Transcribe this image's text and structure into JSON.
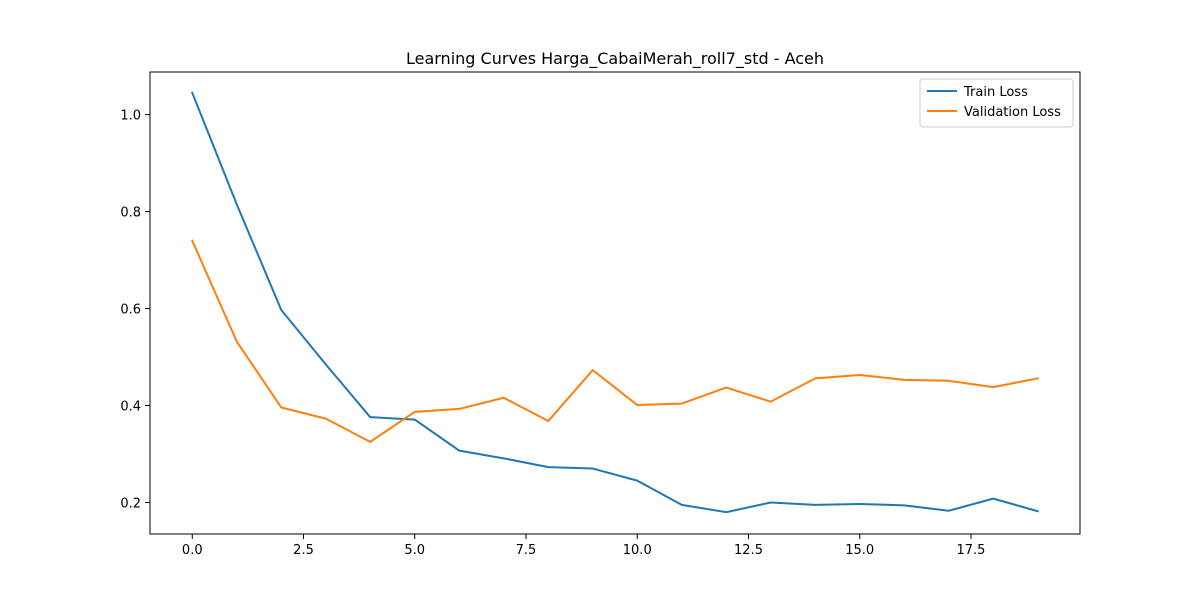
{
  "chart_data": {
    "type": "line",
    "title": "Learning Curves Harga_CabaiMerah_roll7_std - Aceh",
    "xlabel": "",
    "ylabel": "",
    "xlim": [
      -0.95,
      19.95
    ],
    "ylim": [
      0.135,
      1.088
    ],
    "x_ticks": [
      0.0,
      2.5,
      5.0,
      7.5,
      10.0,
      12.5,
      15.0,
      17.5
    ],
    "x_tick_labels": [
      "0.0",
      "2.5",
      "5.0",
      "7.5",
      "10.0",
      "12.5",
      "15.0",
      "17.5"
    ],
    "y_ticks": [
      0.2,
      0.4,
      0.6,
      0.8,
      1.0
    ],
    "y_tick_labels": [
      "0.2",
      "0.4",
      "0.6",
      "0.8",
      "1.0"
    ],
    "grid": false,
    "legend_position": "top-right",
    "x": [
      0,
      1,
      2,
      3,
      4,
      5,
      6,
      7,
      8,
      9,
      10,
      11,
      12,
      13,
      14,
      15,
      16,
      17,
      18,
      19
    ],
    "series": [
      {
        "name": "Train Loss",
        "color": "#1f77b4",
        "values": [
          1.045,
          0.815,
          0.597,
          0.485,
          0.376,
          0.371,
          0.307,
          0.291,
          0.273,
          0.27,
          0.245,
          0.195,
          0.18,
          0.2,
          0.195,
          0.197,
          0.194,
          0.183,
          0.208,
          0.182
        ]
      },
      {
        "name": "Validation Loss",
        "color": "#ff7f0e",
        "values": [
          0.74,
          0.532,
          0.396,
          0.373,
          0.325,
          0.387,
          0.393,
          0.416,
          0.368,
          0.473,
          0.401,
          0.404,
          0.437,
          0.408,
          0.456,
          0.463,
          0.453,
          0.451,
          0.438,
          0.456
        ]
      }
    ]
  }
}
